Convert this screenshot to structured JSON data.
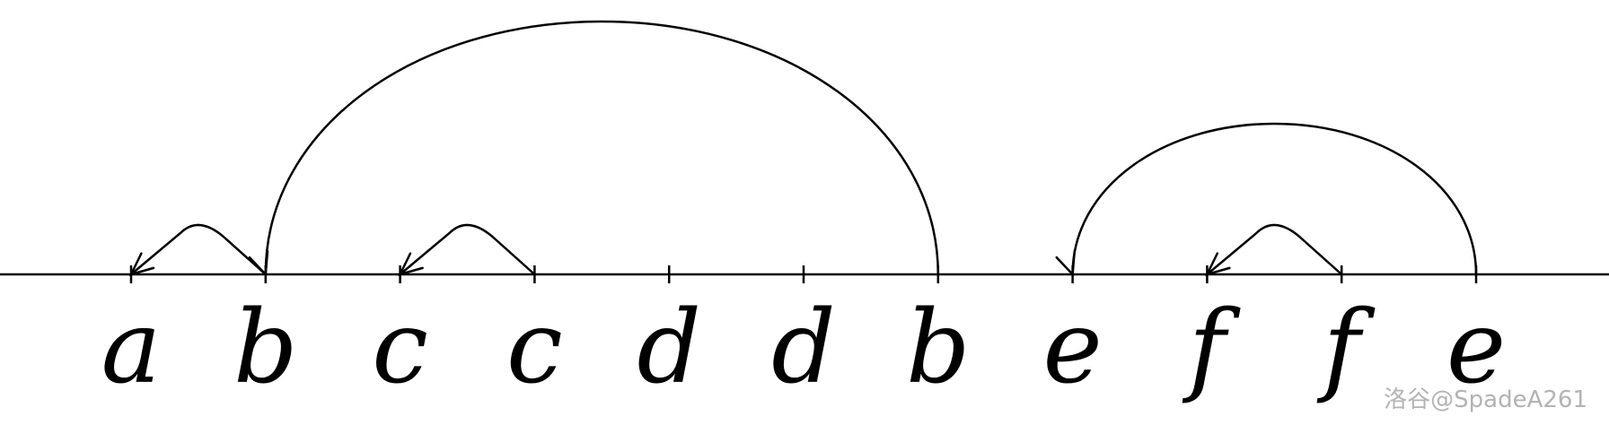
{
  "sequence": [
    "a",
    "b",
    "c",
    "c",
    "d",
    "d",
    "b",
    "e",
    "f",
    "f",
    "e"
  ],
  "arcs": [
    {
      "from": 2,
      "to": 1
    },
    {
      "from": 4,
      "to": 3
    },
    {
      "from": 10,
      "to": 9
    },
    {
      "from": 11,
      "to": 8
    },
    {
      "from": 7,
      "to": 2
    }
  ],
  "watermark": "洛谷@SpadeA261",
  "colors": {
    "stroke": "#000000",
    "watermark": "#b3b3b3"
  }
}
